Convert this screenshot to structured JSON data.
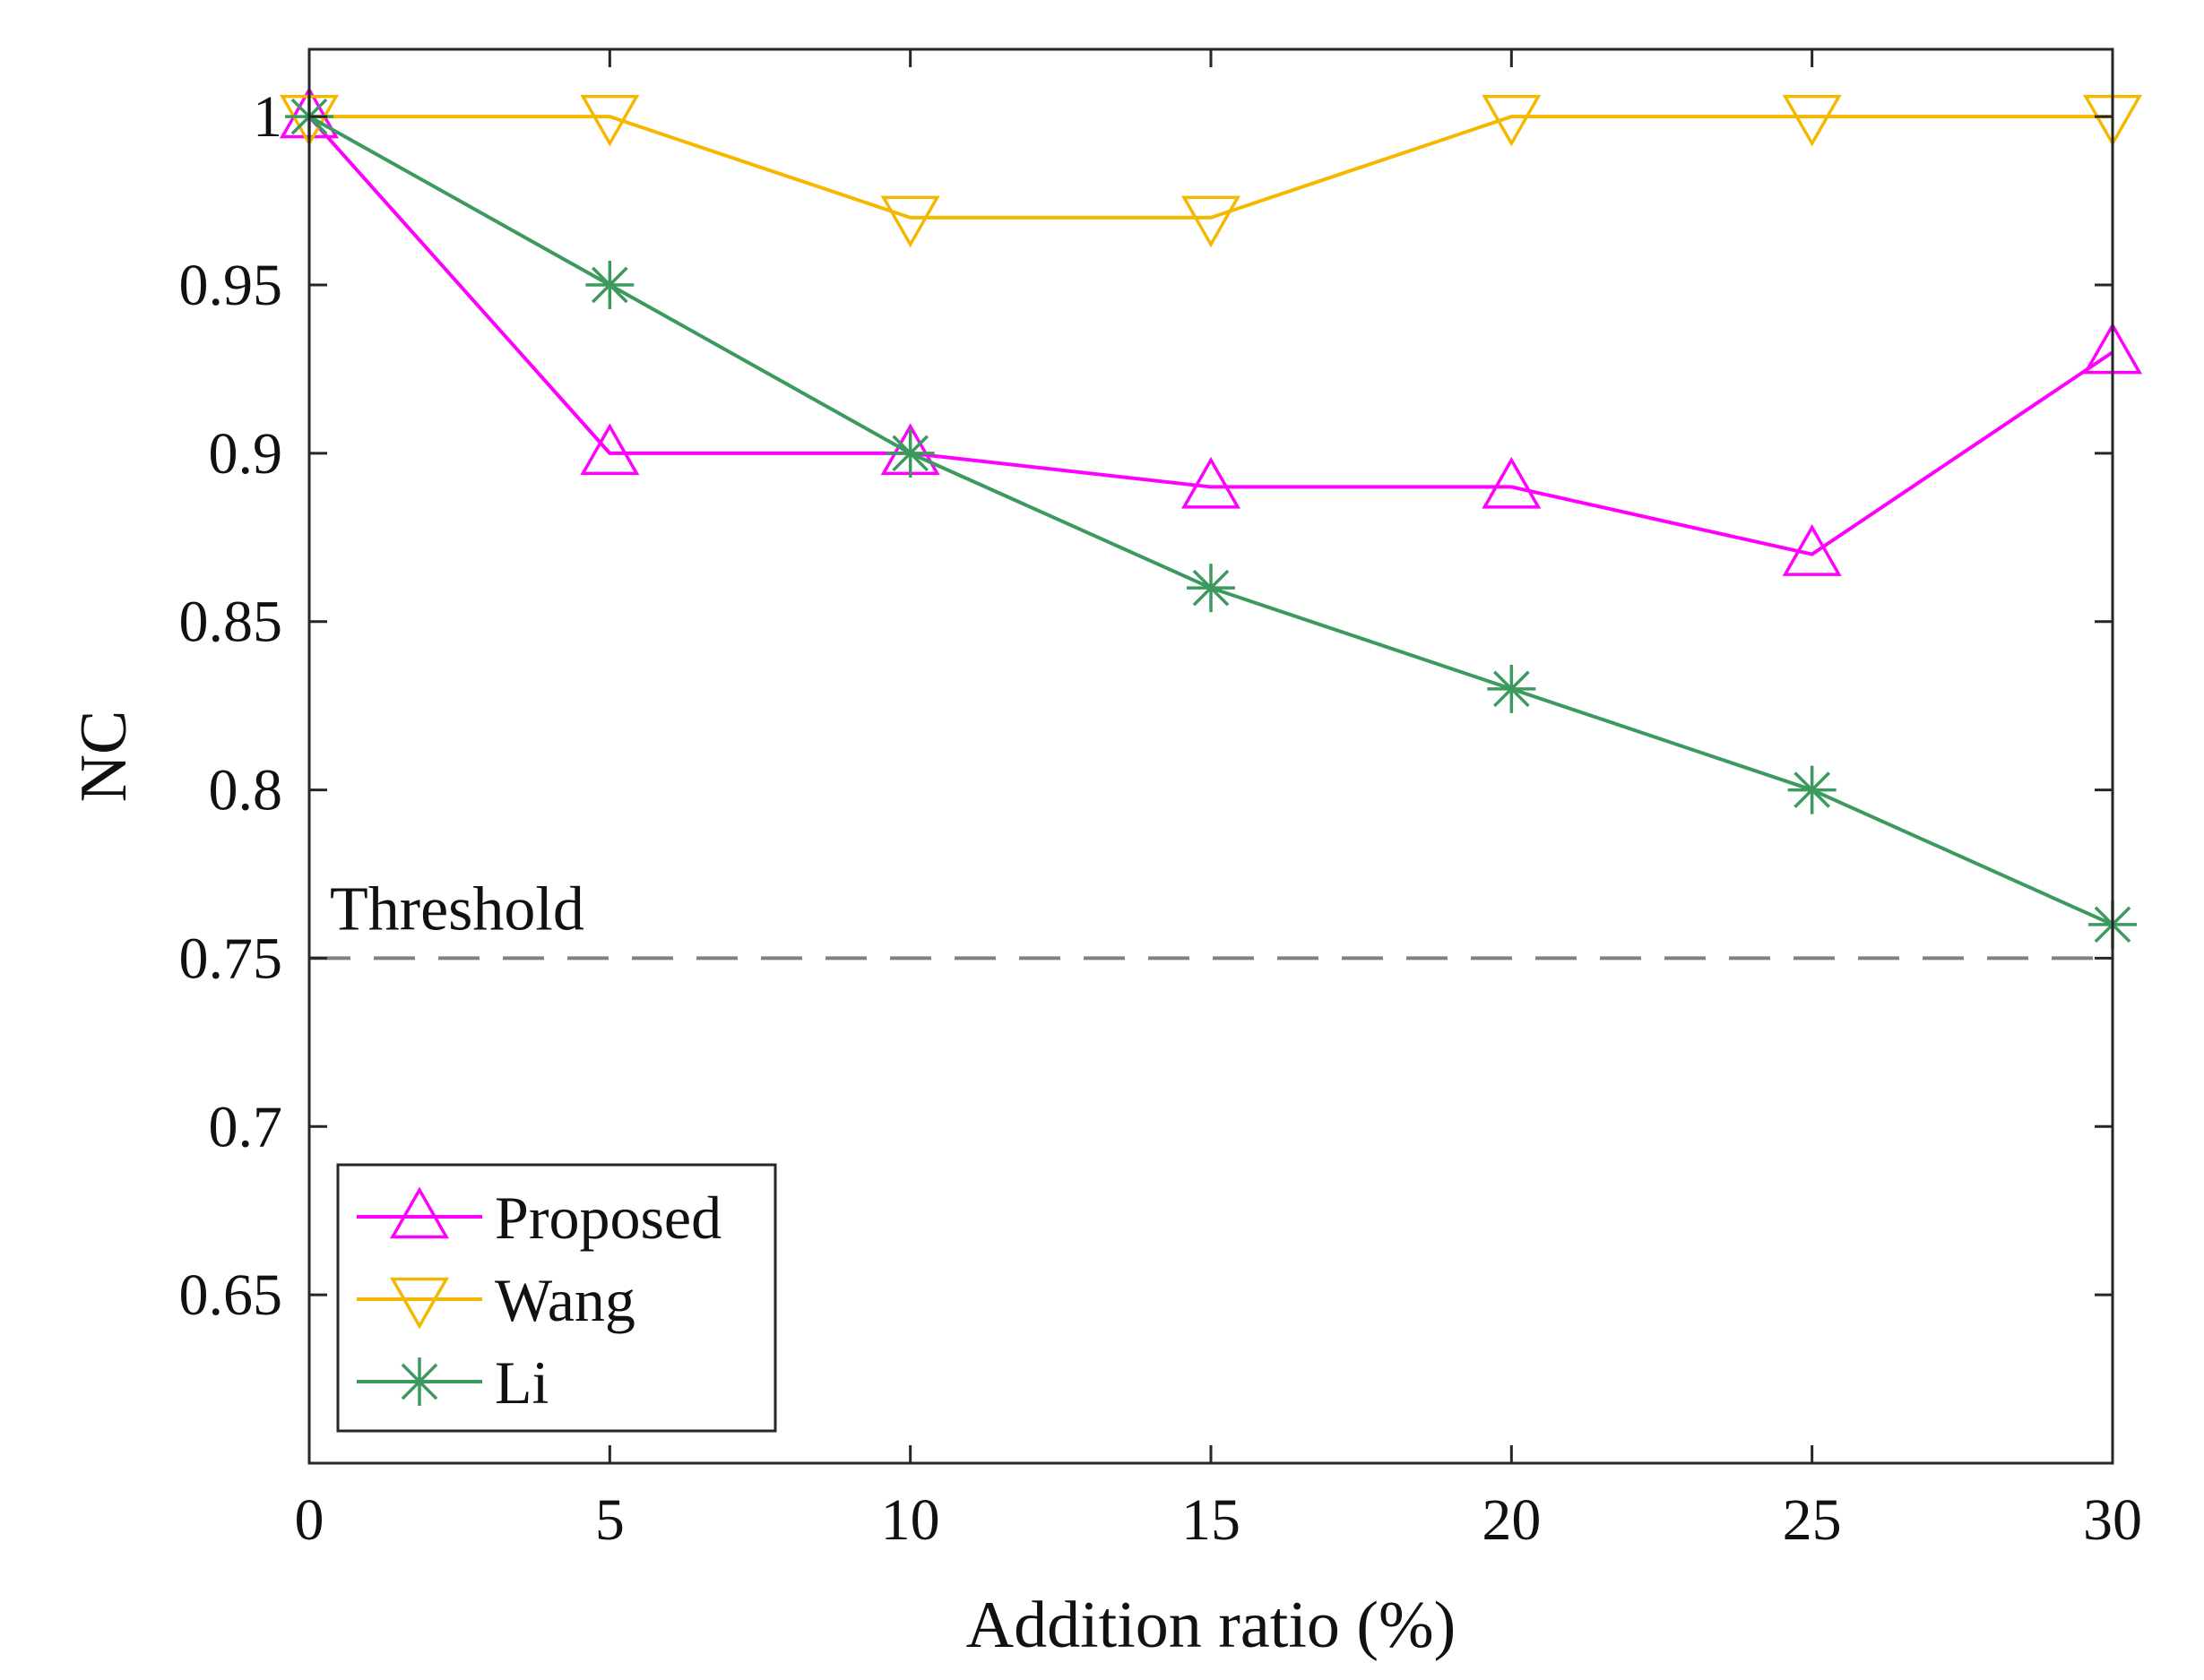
{
  "chart_data": {
    "type": "line",
    "title": "",
    "xlabel": "Addition ratio (%)",
    "ylabel": "NC",
    "xlim": [
      0,
      30
    ],
    "ylim": [
      0.6,
      1.02
    ],
    "x": [
      0,
      5,
      10,
      15,
      20,
      25,
      30
    ],
    "x_ticks": [
      0,
      5,
      10,
      15,
      20,
      25,
      30
    ],
    "x_tick_labels": [
      "0",
      "5",
      "10",
      "15",
      "20",
      "25",
      "30"
    ],
    "y_ticks": [
      0.65,
      0.7,
      0.75,
      0.8,
      0.85,
      0.9,
      0.95,
      1
    ],
    "y_tick_labels": [
      "0.65",
      "0.7",
      "0.75",
      "0.8",
      "0.85",
      "0.9",
      "0.95",
      "1"
    ],
    "grid": false,
    "legend_position": "bottom-left",
    "series": [
      {
        "name": "Proposed",
        "color": "#ff00ff",
        "marker": "triangle-up",
        "values": [
          1.0,
          0.9,
          0.9,
          0.89,
          0.89,
          0.87,
          0.93
        ]
      },
      {
        "name": "Wang",
        "color": "#f5b800",
        "marker": "triangle-down",
        "values": [
          1.0,
          1.0,
          0.97,
          0.97,
          1.0,
          1.0,
          1.0
        ]
      },
      {
        "name": "Li",
        "color": "#3c9a5f",
        "marker": "asterisk",
        "values": [
          1.0,
          0.95,
          0.9,
          0.86,
          0.83,
          0.8,
          0.76
        ]
      }
    ],
    "threshold": {
      "value": 0.75,
      "label": "Threshold",
      "color": "#808080",
      "style": "dashed"
    }
  }
}
